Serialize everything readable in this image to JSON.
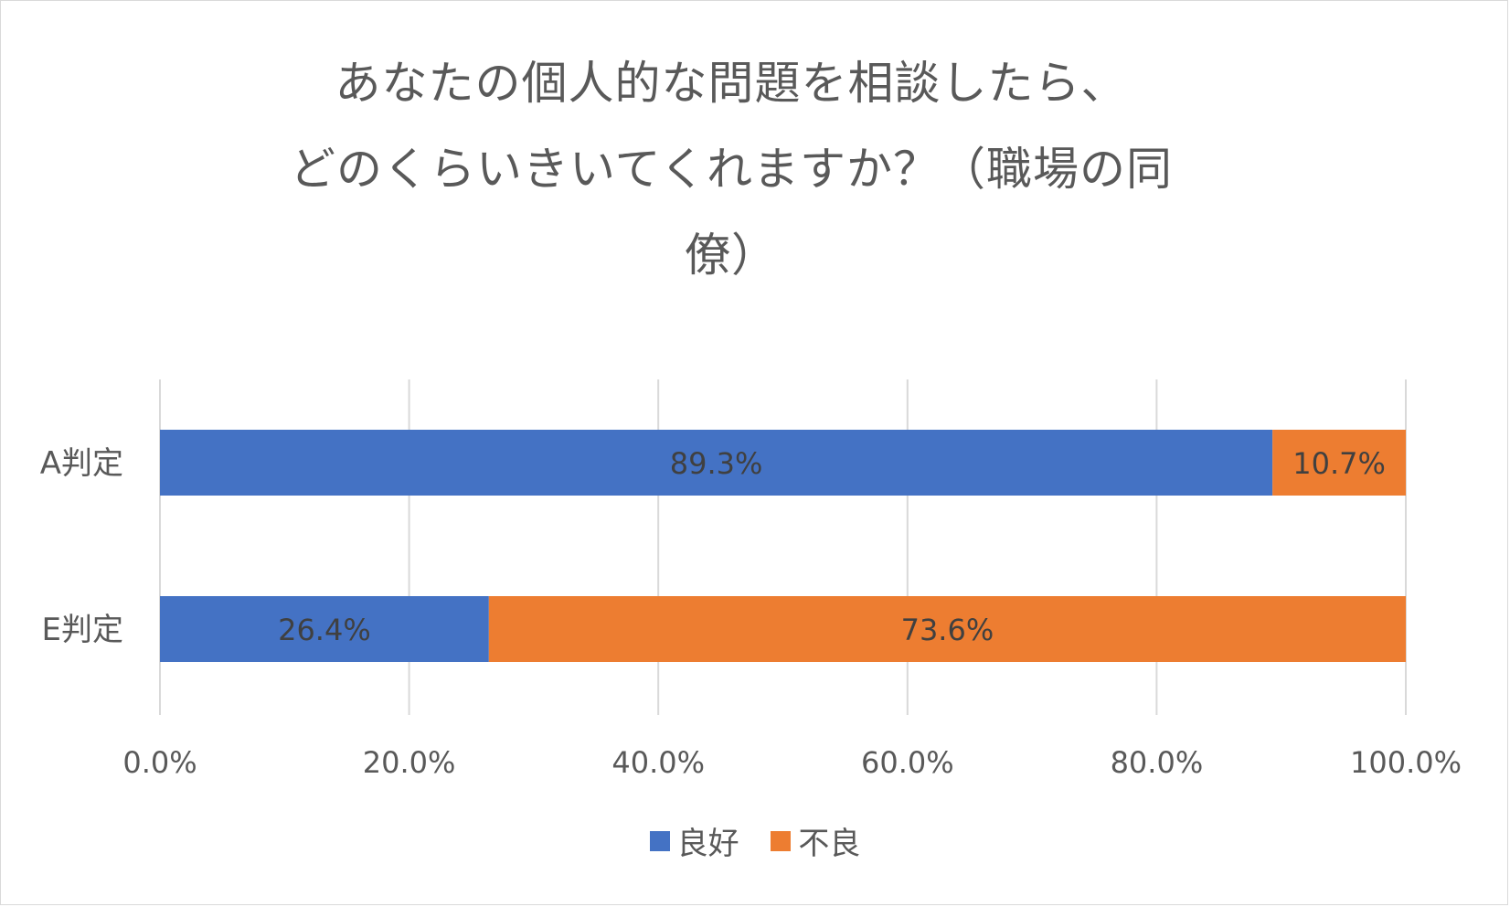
{
  "chart_data": {
    "type": "bar",
    "orientation": "horizontal",
    "stacked": "percent",
    "title_lines": [
      "あなたの個人的な問題を相談したら、",
      "どのくらいきいてくれますか？（職場の同",
      "僚）"
    ],
    "categories": [
      "A判定",
      "E判定"
    ],
    "series": [
      {
        "name": "良好",
        "values": [
          89.3,
          26.4
        ],
        "labels": [
          "89.3%",
          "26.4%"
        ],
        "color": "#4472c4"
      },
      {
        "name": "不良",
        "values": [
          10.7,
          73.6
        ],
        "labels": [
          "10.7%",
          "73.6%"
        ],
        "color": "#ed7d31"
      }
    ],
    "xlim": [
      0,
      100
    ],
    "xticks": [
      0,
      20,
      40,
      60,
      80,
      100
    ],
    "xtick_labels": [
      "0.0%",
      "20.0%",
      "40.0%",
      "60.0%",
      "80.0%",
      "100.0%"
    ],
    "grid": true,
    "legend_position": "bottom"
  }
}
